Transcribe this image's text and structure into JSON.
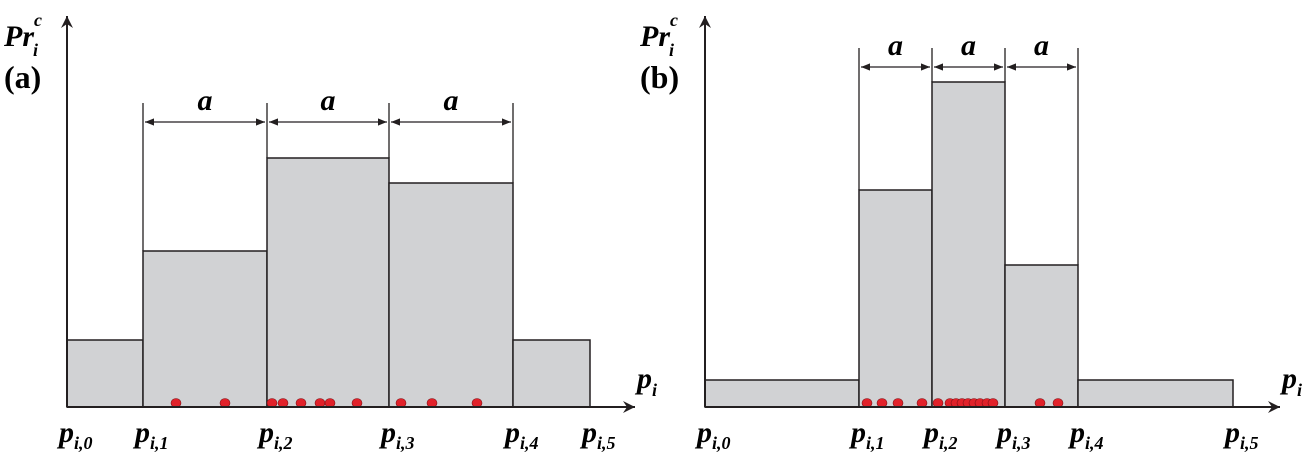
{
  "panels": [
    {
      "label": "(a)",
      "y_axis": {
        "symbol": "Pr",
        "sup": "c",
        "sub": "i"
      },
      "x_axis": {
        "symbol": "p",
        "sub": "i"
      },
      "spans": [
        "a",
        "a",
        "a"
      ],
      "ticks": [
        {
          "symbol": "p",
          "sub": "i,0"
        },
        {
          "symbol": "p",
          "sub": "i,1"
        },
        {
          "symbol": "p",
          "sub": "i,2"
        },
        {
          "symbol": "p",
          "sub": "i,3"
        },
        {
          "symbol": "p",
          "sub": "i,4"
        },
        {
          "symbol": "p",
          "sub": "i,5"
        }
      ]
    },
    {
      "label": "(b)",
      "y_axis": {
        "symbol": "Pr",
        "sup": "c",
        "sub": "i"
      },
      "x_axis": {
        "symbol": "p",
        "sub": "i"
      },
      "spans": [
        "a",
        "a",
        "a"
      ],
      "ticks": [
        {
          "symbol": "p",
          "sub": "i,0"
        },
        {
          "symbol": "p",
          "sub": "i,1"
        },
        {
          "symbol": "p",
          "sub": "i,2"
        },
        {
          "symbol": "p",
          "sub": "i,3"
        },
        {
          "symbol": "p",
          "sub": "i,4"
        },
        {
          "symbol": "p",
          "sub": "i,5"
        }
      ]
    }
  ]
}
